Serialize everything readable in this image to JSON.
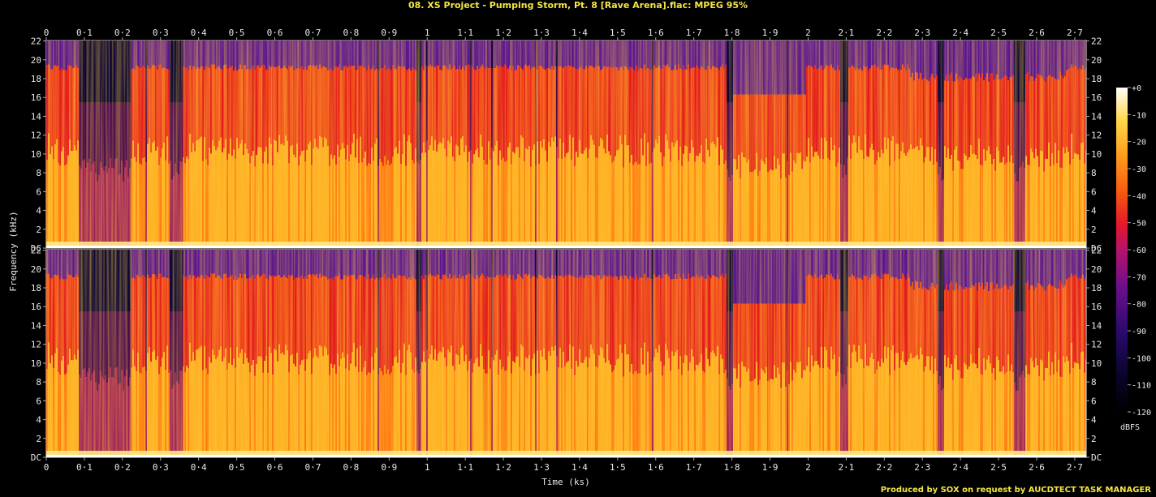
{
  "header": {
    "title": "08. XS Project - Pumping Storm, Pt. 8 [Rave Arena].flac: MPEG 95%"
  },
  "footer": {
    "text": "Produced by SOX on request by AUCDTECT TASK MANAGER"
  },
  "chart_data": {
    "type": "heatmap",
    "title": "08. XS Project - Pumping Storm, Pt. 8 [Rave Arena].flac: MPEG 95%",
    "xlabel": "Time (ks)",
    "ylabel": "Frequency (kHz)",
    "xlim": [
      0,
      2.73
    ],
    "ylim": [
      0,
      22.05
    ],
    "x_ticks": [
      "0",
      "0·1",
      "0·2",
      "0·3",
      "0·4",
      "0·5",
      "0·6",
      "0·7",
      "0·8",
      "0·9",
      "1",
      "1·1",
      "1·2",
      "1·3",
      "1·4",
      "1·5",
      "1·6",
      "1·7",
      "1·8",
      "1·9",
      "2",
      "2·1",
      "2·2",
      "2·3",
      "2·4",
      "2·5",
      "2·6",
      "2·7"
    ],
    "y_ticks": [
      "DC",
      "2",
      "4",
      "6",
      "8",
      "10",
      "12",
      "14",
      "16",
      "18",
      "20",
      "22"
    ],
    "channels": 2,
    "colorbar": {
      "label": "dBFS",
      "ticks": [
        "+0",
        "-10",
        "-20",
        "-30",
        "-40",
        "-50",
        "-60",
        "-70",
        "-80",
        "-90",
        "-100",
        "-110",
        "-120"
      ],
      "range": [
        -120,
        0
      ]
    },
    "colors": {
      "background": "#000000",
      "title": "#f5e642",
      "axis_text": "#e8e8e8"
    }
  }
}
